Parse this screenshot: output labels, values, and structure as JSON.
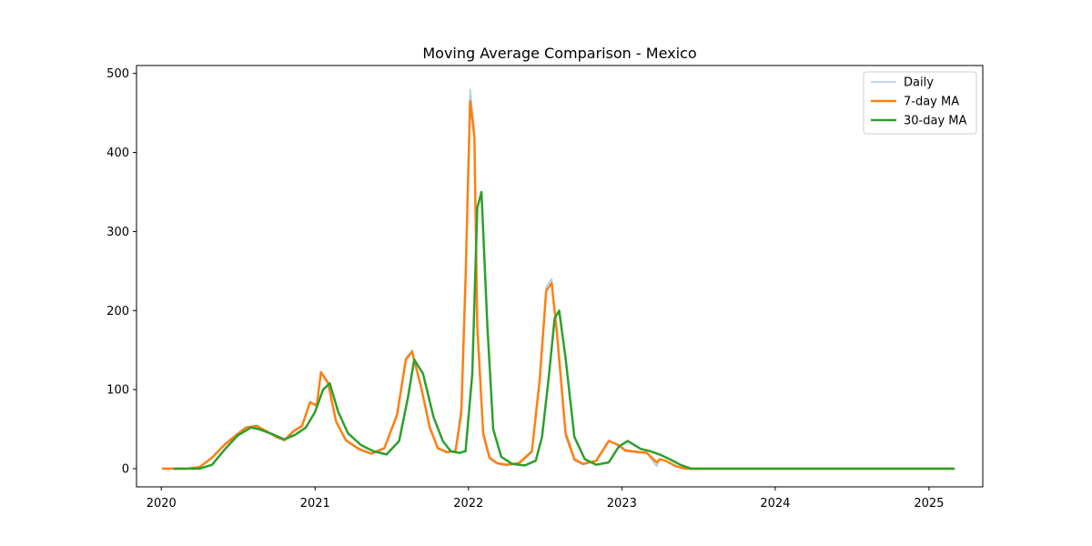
{
  "chart_data": {
    "type": "line",
    "title": "Moving Average Comparison - Mexico",
    "xlabel": "",
    "ylabel": "",
    "x_ticks": [
      "2020",
      "2021",
      "2022",
      "2023",
      "2024",
      "2025"
    ],
    "y_ticks": [
      "0",
      "100",
      "200",
      "300",
      "400",
      "500"
    ],
    "xlim": [
      "2019-11-03",
      "2025-05-09"
    ],
    "ylim": [
      -23,
      510
    ],
    "grid": false,
    "legend_position": "top-right",
    "series": [
      {
        "name": "Daily",
        "color": "#aec7e8",
        "x": [
          "2020-01-05",
          "2020-02-01",
          "2020-03-01",
          "2020-04-01",
          "2020-05-01",
          "2020-06-01",
          "2020-07-01",
          "2020-07-20",
          "2020-08-15",
          "2020-09-15",
          "2020-10-01",
          "2020-10-20",
          "2020-11-10",
          "2020-12-01",
          "2020-12-20",
          "2021-01-05",
          "2021-01-15",
          "2021-02-01",
          "2021-02-20",
          "2021-03-15",
          "2021-04-15",
          "2021-05-15",
          "2021-06-15",
          "2021-07-15",
          "2021-08-05",
          "2021-08-20",
          "2021-09-10",
          "2021-10-01",
          "2021-10-20",
          "2021-11-10",
          "2021-12-01",
          "2021-12-15",
          "2021-12-25",
          "2022-01-05",
          "2022-01-15",
          "2022-01-22",
          "2022-02-05",
          "2022-02-20",
          "2022-03-10",
          "2022-04-01",
          "2022-05-01",
          "2022-06-01",
          "2022-06-20",
          "2022-07-05",
          "2022-07-18",
          "2022-07-30",
          "2022-08-20",
          "2022-09-10",
          "2022-10-01",
          "2022-11-01",
          "2022-12-01",
          "2022-12-20",
          "2023-01-10",
          "2023-02-10",
          "2023-03-01",
          "2023-03-25",
          "2023-04-01",
          "2023-04-15",
          "2023-05-10",
          "2023-06-01",
          "2023-07-01",
          "2024-01-01",
          "2024-03-01",
          "2024-08-01",
          "2025-01-01",
          "2025-03-01"
        ],
        "values": [
          0,
          0,
          0,
          2,
          15,
          32,
          45,
          52,
          55,
          45,
          40,
          36,
          48,
          55,
          85,
          78,
          123,
          110,
          60,
          35,
          24,
          18,
          25,
          70,
          140,
          150,
          105,
          50,
          25,
          20,
          22,
          80,
          250,
          480,
          430,
          170,
          40,
          12,
          6,
          4,
          6,
          20,
          120,
          230,
          240,
          170,
          40,
          10,
          5,
          10,
          36,
          30,
          22,
          20,
          20,
          3,
          12,
          10,
          3,
          0,
          0,
          0,
          0,
          0,
          0,
          0
        ]
      },
      {
        "name": "7-day MA",
        "color": "#ff7f0e",
        "x": [
          "2020-01-05",
          "2020-02-01",
          "2020-03-01",
          "2020-04-01",
          "2020-05-01",
          "2020-06-01",
          "2020-07-01",
          "2020-07-20",
          "2020-08-15",
          "2020-09-15",
          "2020-10-01",
          "2020-10-20",
          "2020-11-10",
          "2020-12-01",
          "2020-12-20",
          "2021-01-05",
          "2021-01-15",
          "2021-02-01",
          "2021-02-20",
          "2021-03-15",
          "2021-04-15",
          "2021-05-15",
          "2021-06-15",
          "2021-07-15",
          "2021-08-05",
          "2021-08-20",
          "2021-09-10",
          "2021-10-01",
          "2021-10-20",
          "2021-11-10",
          "2021-12-01",
          "2021-12-15",
          "2021-12-25",
          "2022-01-05",
          "2022-01-15",
          "2022-01-22",
          "2022-02-05",
          "2022-02-20",
          "2022-03-10",
          "2022-04-01",
          "2022-05-01",
          "2022-06-01",
          "2022-06-20",
          "2022-07-05",
          "2022-07-18",
          "2022-07-30",
          "2022-08-20",
          "2022-09-10",
          "2022-10-01",
          "2022-11-01",
          "2022-12-01",
          "2022-12-20",
          "2023-01-10",
          "2023-02-10",
          "2023-03-01",
          "2023-03-25",
          "2023-04-01",
          "2023-04-15",
          "2023-05-10",
          "2023-06-01",
          "2023-07-01",
          "2024-01-01",
          "2024-03-01",
          "2024-08-01",
          "2025-01-01",
          "2025-03-01"
        ],
        "values": [
          0,
          0,
          0,
          2,
          14,
          31,
          44,
          52,
          54,
          45,
          40,
          36,
          47,
          54,
          84,
          80,
          122,
          108,
          60,
          36,
          25,
          19,
          26,
          68,
          138,
          148,
          104,
          52,
          26,
          21,
          22,
          70,
          240,
          465,
          420,
          180,
          45,
          14,
          7,
          5,
          7,
          22,
          115,
          225,
          235,
          175,
          45,
          12,
          6,
          10,
          35,
          31,
          23,
          21,
          20,
          8,
          12,
          10,
          3,
          0,
          0,
          0,
          0,
          0,
          0,
          0
        ]
      },
      {
        "name": "30-day MA",
        "color": "#2ca02c",
        "x": [
          "2020-02-01",
          "2020-03-01",
          "2020-04-01",
          "2020-05-01",
          "2020-06-01",
          "2020-07-01",
          "2020-08-01",
          "2020-08-20",
          "2020-09-20",
          "2020-10-20",
          "2020-11-15",
          "2020-12-10",
          "2021-01-01",
          "2021-01-20",
          "2021-02-05",
          "2021-02-25",
          "2021-03-20",
          "2021-04-20",
          "2021-05-20",
          "2021-06-20",
          "2021-07-20",
          "2021-08-10",
          "2021-08-25",
          "2021-09-15",
          "2021-10-10",
          "2021-11-01",
          "2021-11-20",
          "2021-12-10",
          "2021-12-25",
          "2022-01-10",
          "2022-01-22",
          "2022-02-01",
          "2022-02-15",
          "2022-03-01",
          "2022-03-20",
          "2022-04-15",
          "2022-05-15",
          "2022-06-10",
          "2022-06-25",
          "2022-07-10",
          "2022-07-25",
          "2022-08-05",
          "2022-08-20",
          "2022-09-10",
          "2022-10-05",
          "2022-11-01",
          "2022-12-01",
          "2022-12-25",
          "2023-01-15",
          "2023-02-15",
          "2023-03-10",
          "2023-04-01",
          "2023-04-25",
          "2023-05-20",
          "2023-06-15",
          "2023-07-15",
          "2024-01-01",
          "2024-03-01",
          "2024-08-01",
          "2025-01-01",
          "2025-03-01"
        ],
        "values": [
          0,
          0,
          0,
          5,
          25,
          42,
          52,
          50,
          44,
          37,
          43,
          52,
          72,
          100,
          108,
          72,
          45,
          30,
          22,
          18,
          35,
          90,
          138,
          120,
          65,
          35,
          22,
          20,
          22,
          120,
          330,
          350,
          180,
          50,
          15,
          6,
          4,
          10,
          40,
          110,
          190,
          200,
          140,
          40,
          12,
          5,
          8,
          28,
          35,
          25,
          22,
          18,
          12,
          5,
          0,
          0,
          0,
          0,
          0,
          0,
          0
        ]
      }
    ]
  }
}
